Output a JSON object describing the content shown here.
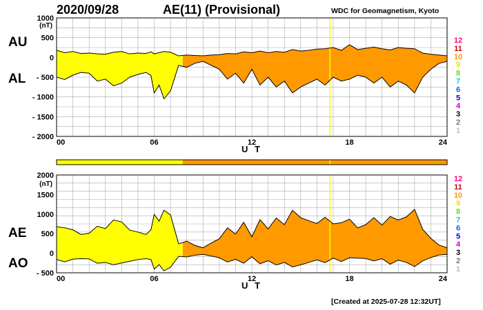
{
  "header": {
    "date": "2020/09/28",
    "title": "AE(11) (Provisional)",
    "institution": "WDC for Geomagnetism, Kyoto"
  },
  "footer": {
    "created": "[Created at 2025-07-28 12:32UT]"
  },
  "station_count_scale": {
    "labels": [
      "12",
      "11",
      "10",
      "9",
      "8",
      "7",
      "6",
      "5",
      "4",
      "3",
      "2",
      "1"
    ],
    "colors": [
      "#ff0080",
      "#cc0000",
      "#ff9900",
      "#e6e600",
      "#66dd00",
      "#00cccc",
      "#0066ff",
      "#0000cc",
      "#cc00cc",
      "#000000",
      "#777777",
      "#bbbbbb"
    ]
  },
  "colors": {
    "fill_early": "#ffff00",
    "fill_late": "#ff9900",
    "marker": "#ffff00"
  },
  "chart_data": [
    {
      "type": "area",
      "series": [
        {
          "name": "AU",
          "side": "top"
        },
        {
          "name": "AL",
          "side": "bottom"
        }
      ],
      "ylabel": "(nT)",
      "xlabel": "U T",
      "xlim": [
        0,
        24
      ],
      "ylim": [
        -2000,
        1000
      ],
      "yticks": [
        1000,
        500,
        0,
        -500,
        -1000,
        -1500,
        -2000
      ],
      "ytick_labels": [
        "1000",
        "500",
        "0",
        "- 500",
        "- 1000",
        "- 1500",
        "- 2000"
      ],
      "xticks": [
        0,
        6,
        12,
        18,
        24
      ],
      "xtick_labels": [
        "00",
        "06",
        "12",
        "18",
        "24"
      ],
      "grid": true,
      "color_change_hour": 7.75,
      "marker_hour": 16.8,
      "x": [
        0,
        0.5,
        1,
        1.5,
        2,
        2.5,
        3,
        3.5,
        4,
        4.5,
        5,
        5.5,
        5.8,
        6,
        6.3,
        6.6,
        7,
        7.5,
        8,
        8.5,
        9,
        9.5,
        10,
        10.5,
        11,
        11.5,
        12,
        12.5,
        13,
        13.5,
        14,
        14.5,
        15,
        15.5,
        16,
        16.5,
        17,
        17.5,
        18,
        18.5,
        19,
        19.5,
        20,
        20.5,
        21,
        21.5,
        22,
        22.5,
        23,
        23.5,
        24
      ],
      "upper": [
        180,
        120,
        150,
        100,
        110,
        90,
        80,
        130,
        150,
        90,
        110,
        100,
        140,
        90,
        120,
        150,
        130,
        40,
        60,
        50,
        40,
        60,
        70,
        100,
        90,
        140,
        120,
        160,
        120,
        150,
        130,
        200,
        160,
        180,
        210,
        220,
        250,
        180,
        320,
        200,
        230,
        260,
        220,
        190,
        250,
        230,
        220,
        110,
        80,
        60,
        40
      ],
      "lower": [
        -500,
        -560,
        -450,
        -380,
        -400,
        -600,
        -550,
        -720,
        -650,
        -500,
        -430,
        -380,
        -460,
        -900,
        -700,
        -1050,
        -850,
        -200,
        -250,
        -150,
        -100,
        -200,
        -300,
        -550,
        -400,
        -650,
        -300,
        -700,
        -500,
        -750,
        -600,
        -900,
        -750,
        -650,
        -550,
        -700,
        -500,
        -600,
        -550,
        -450,
        -500,
        -650,
        -500,
        -750,
        -600,
        -700,
        -900,
        -500,
        -300,
        -150,
        -100
      ]
    },
    {
      "type": "area",
      "series": [
        {
          "name": "AE",
          "side": "top"
        },
        {
          "name": "AO",
          "side": "bottom"
        }
      ],
      "ylabel": "(nT)",
      "xlabel": "U T",
      "xlim": [
        0,
        24
      ],
      "ylim": [
        -500,
        2000
      ],
      "yticks": [
        2000,
        1500,
        1000,
        500,
        0,
        -500
      ],
      "ytick_labels": [
        "2000",
        "1500",
        "1000",
        "500",
        "0",
        "- 500"
      ],
      "xticks": [
        0,
        6,
        12,
        18,
        24
      ],
      "xtick_labels": [
        "00",
        "06",
        "12",
        "18",
        "24"
      ],
      "grid": true,
      "color_change_hour": 7.75,
      "marker_hour": 16.8,
      "x": [
        0,
        0.5,
        1,
        1.5,
        2,
        2.5,
        3,
        3.5,
        4,
        4.5,
        5,
        5.5,
        5.8,
        6,
        6.3,
        6.6,
        7,
        7.5,
        8,
        8.5,
        9,
        9.5,
        10,
        10.5,
        11,
        11.5,
        12,
        12.5,
        13,
        13.5,
        14,
        14.5,
        15,
        15.5,
        16,
        16.5,
        17,
        17.5,
        18,
        18.5,
        19,
        19.5,
        20,
        20.5,
        21,
        21.5,
        22,
        22.5,
        23,
        23.5,
        24
      ],
      "upper": [
        680,
        650,
        600,
        480,
        510,
        690,
        630,
        850,
        800,
        590,
        540,
        480,
        600,
        990,
        820,
        1100,
        980,
        240,
        310,
        200,
        140,
        260,
        370,
        650,
        490,
        790,
        420,
        860,
        620,
        900,
        730,
        1100,
        910,
        830,
        760,
        920,
        750,
        780,
        870,
        650,
        730,
        910,
        720,
        940,
        850,
        930,
        1120,
        610,
        380,
        210,
        140
      ],
      "lower": [
        -160,
        -220,
        -150,
        -140,
        -145,
        -255,
        -235,
        -295,
        -250,
        -205,
        -160,
        -140,
        -160,
        -405,
        -290,
        -450,
        -360,
        -80,
        -95,
        -50,
        -30,
        -70,
        -115,
        -225,
        -155,
        -255,
        -90,
        -270,
        -190,
        -300,
        -235,
        -350,
        -295,
        -235,
        -170,
        -240,
        -125,
        -210,
        -115,
        -125,
        -135,
        -195,
        -140,
        -280,
        -175,
        -235,
        -340,
        -195,
        -110,
        -45,
        -30
      ]
    }
  ]
}
